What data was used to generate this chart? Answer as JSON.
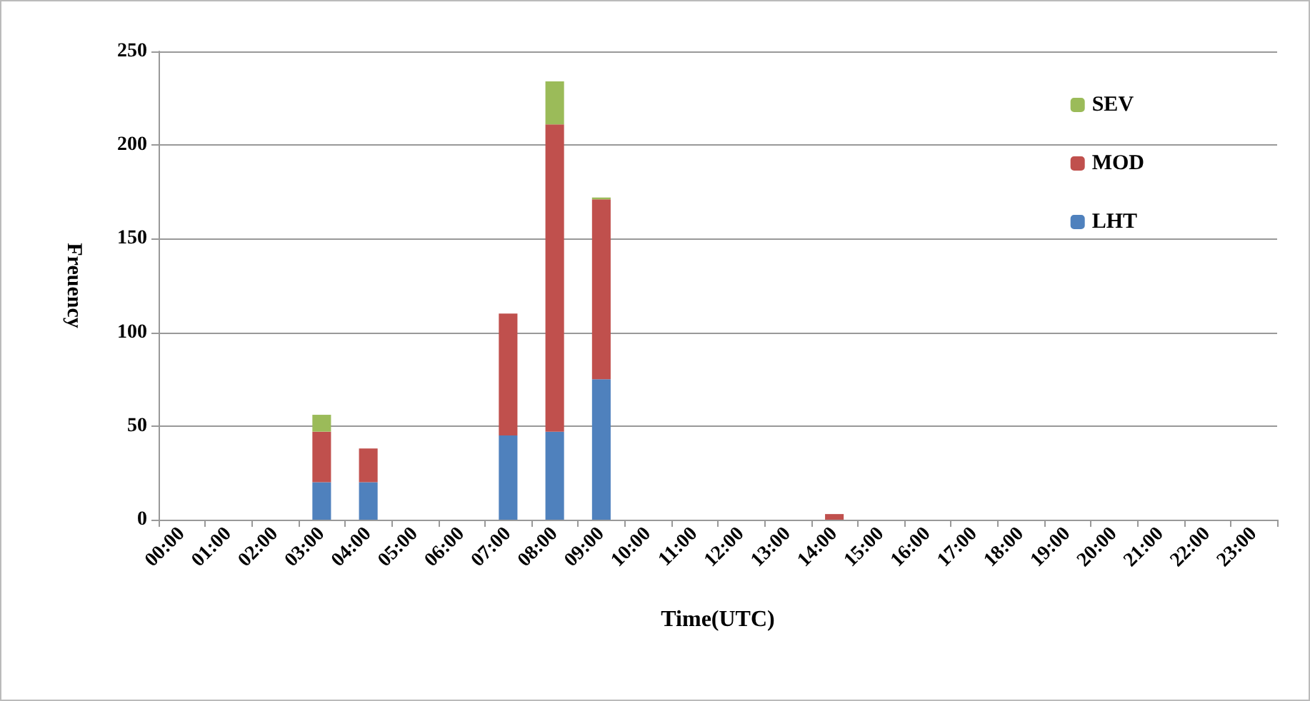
{
  "chart_data": {
    "type": "bar",
    "stacked": true,
    "xlabel": "Time(UTC)",
    "ylabel": "Freuency",
    "categories": [
      "00:00",
      "01:00",
      "02:00",
      "03:00",
      "04:00",
      "05:00",
      "06:00",
      "07:00",
      "08:00",
      "09:00",
      "10:00",
      "11:00",
      "12:00",
      "13:00",
      "14:00",
      "15:00",
      "16:00",
      "17:00",
      "18:00",
      "19:00",
      "20:00",
      "21:00",
      "22:00",
      "23:00"
    ],
    "series": [
      {
        "name": "LHT",
        "color": "#4f81bd",
        "values": [
          0,
          0,
          0,
          20,
          20,
          0,
          0,
          45,
          47,
          75,
          0,
          0,
          0,
          0,
          0,
          0,
          0,
          0,
          0,
          0,
          0,
          0,
          0,
          0
        ]
      },
      {
        "name": "MOD",
        "color": "#c0504d",
        "values": [
          0,
          0,
          0,
          27,
          18,
          0,
          0,
          65,
          164,
          96,
          0,
          0,
          0,
          0,
          3,
          0,
          0,
          0,
          0,
          0,
          0,
          0,
          0,
          0
        ]
      },
      {
        "name": "SEV",
        "color": "#9bbb59",
        "values": [
          0,
          0,
          0,
          9,
          0,
          0,
          0,
          0,
          23,
          1,
          0,
          0,
          0,
          0,
          0,
          0,
          0,
          0,
          0,
          0,
          0,
          0,
          0,
          0
        ]
      }
    ],
    "ylim": [
      0,
      250
    ],
    "yticks": [
      0,
      50,
      100,
      150,
      200,
      250
    ],
    "grid": "y",
    "legend": "top right"
  }
}
